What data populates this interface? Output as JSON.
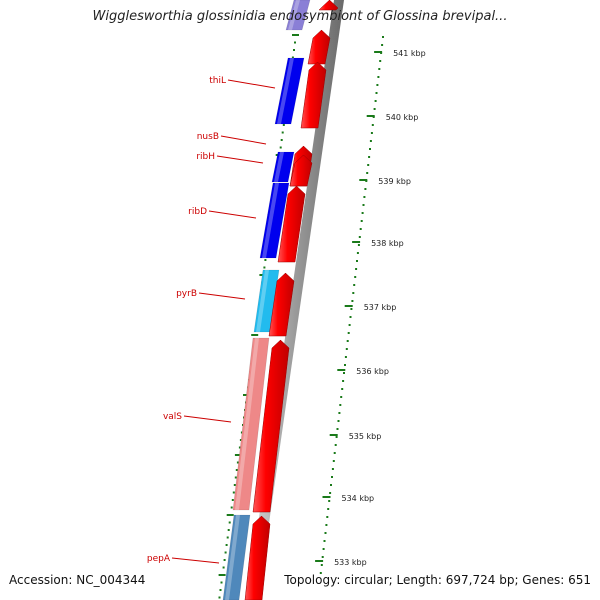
{
  "title": "Wigglesworthia glossinidia endosymbiont of Glossina brevipal...",
  "footer": {
    "accession_label": "Accession:",
    "accession": "NC_004344",
    "topology_label": "Topology:",
    "topology": "circular",
    "length_label": "Length:",
    "length": "697,724 bp",
    "genes_label": "Genes:",
    "genes": "651"
  },
  "colors": {
    "strand_forward": "#ff0000",
    "gene_label": "#cc0000",
    "ruler_tick": "#1a7a1a",
    "backbone": "#888888"
  },
  "scale_labels": [
    "541 kbp",
    "540 kbp",
    "539 kbp",
    "538 kbp",
    "537 kbp",
    "536 kbp",
    "535 kbp",
    "534 kbp",
    "533 kbp"
  ],
  "gene_labels": [
    "thiL",
    "nusB",
    "ribH",
    "ribD",
    "pyrB",
    "valS",
    "pepA"
  ],
  "left_track_colors": [
    "#8a7fd6",
    "#0000ee",
    "#0000ee",
    "#0000ee",
    "#22bbee",
    "#ee8888",
    "#4f88bb"
  ]
}
